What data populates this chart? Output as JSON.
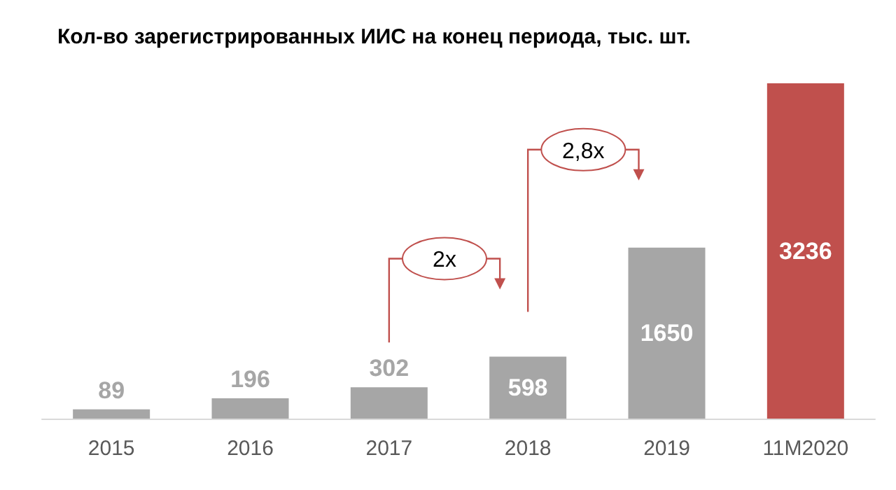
{
  "chart_data": {
    "type": "bar",
    "title": "Кол-во зарегистрированных ИИС на конец периода, тыс. шт.",
    "categories": [
      "2015",
      "2016",
      "2017",
      "2018",
      "2019",
      "11M2020"
    ],
    "values": [
      89,
      196,
      302,
      598,
      1650,
      3236
    ],
    "colors": [
      "#a6a6a6",
      "#a6a6a6",
      "#a6a6a6",
      "#a6a6a6",
      "#a6a6a6",
      "#c0504d"
    ],
    "data_labels": true,
    "annotations": [
      "2x",
      "2,8x"
    ]
  }
}
